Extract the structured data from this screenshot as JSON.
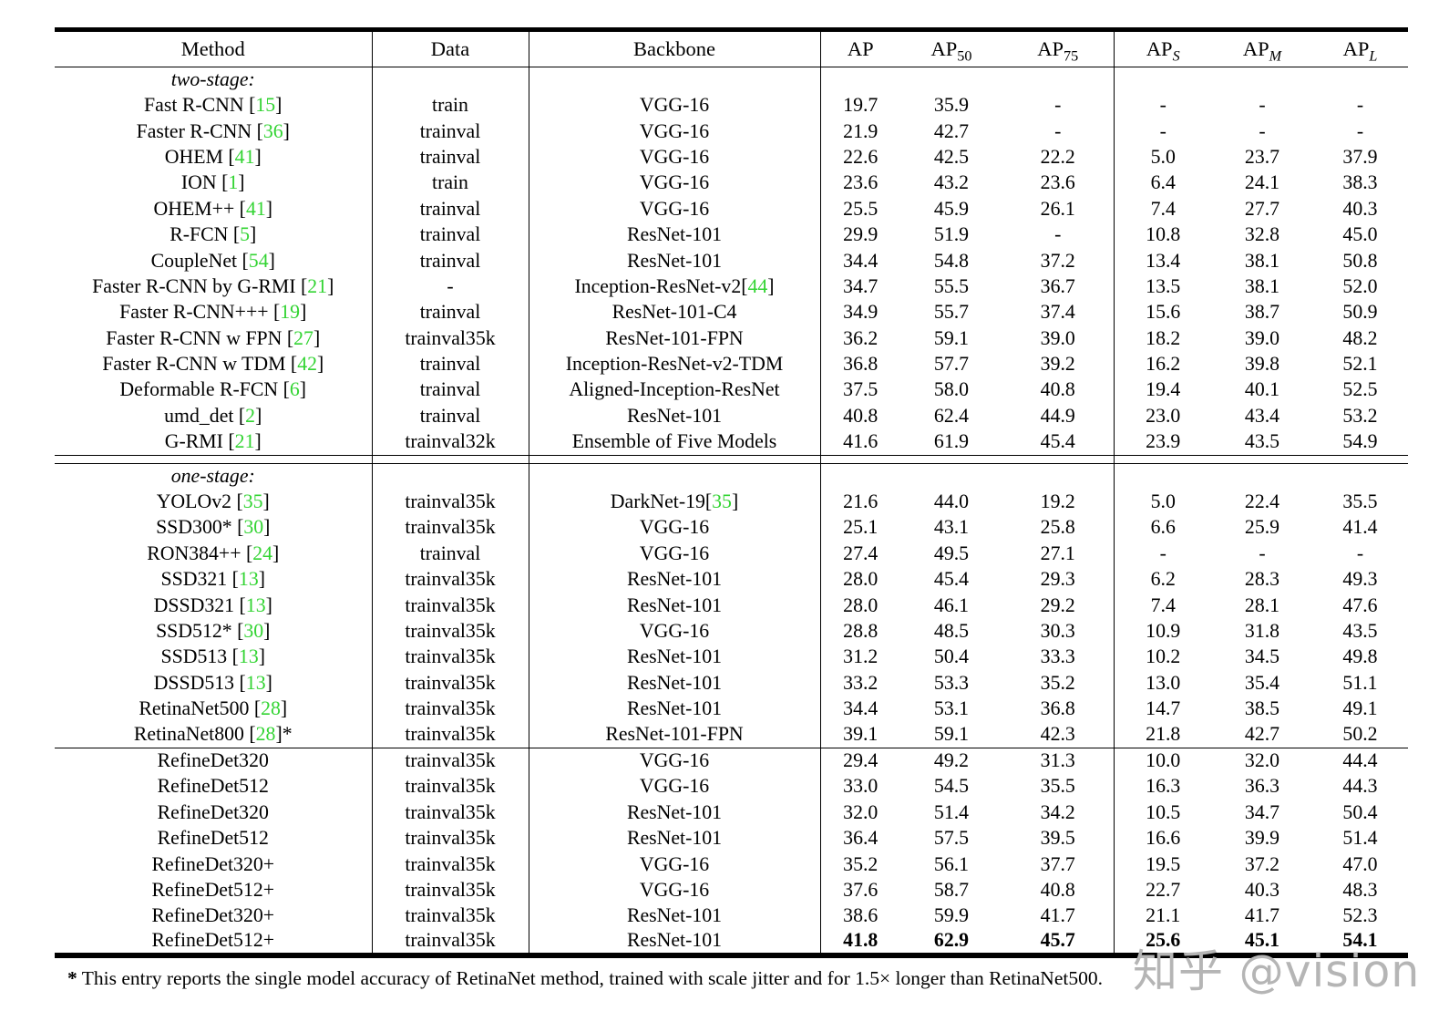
{
  "colors": {
    "cite_green": "#33d433",
    "watermark_gray": "#b5b5b5"
  },
  "watermark": {
    "text": "知乎 @vision"
  },
  "footnote": {
    "star": "*",
    "text": "This entry reports the single model accuracy of RetinaNet method, trained with scale jitter and for 1.5× longer than RetinaNet500."
  },
  "table": {
    "headers": [
      {
        "text": "Method"
      },
      {
        "text": "Data"
      },
      {
        "text": "Backbone"
      },
      {
        "text": "AP"
      },
      {
        "text": "AP",
        "sub": "50",
        "italic_sub": false
      },
      {
        "text": "AP",
        "sub": "75",
        "italic_sub": false
      },
      {
        "text": "AP",
        "sub": "S",
        "italic_sub": true
      },
      {
        "text": "AP",
        "sub": "M",
        "italic_sub": true
      },
      {
        "text": "AP",
        "sub": "L",
        "italic_sub": true
      }
    ],
    "sections": [
      {
        "label": "two-stage:",
        "rows": [
          {
            "method": "Fast R-CNN",
            "cite": "15",
            "suffix": "",
            "data": "train",
            "backbone": "VGG-16",
            "backbone_cite": "",
            "vals": [
              "19.7",
              "35.9",
              "-",
              "-",
              "-",
              "-"
            ],
            "bold": false
          },
          {
            "method": "Faster R-CNN",
            "cite": "36",
            "suffix": "",
            "data": "trainval",
            "backbone": "VGG-16",
            "backbone_cite": "",
            "vals": [
              "21.9",
              "42.7",
              "-",
              "-",
              "-",
              "-"
            ],
            "bold": false
          },
          {
            "method": "OHEM",
            "cite": "41",
            "suffix": "",
            "data": "trainval",
            "backbone": "VGG-16",
            "backbone_cite": "",
            "vals": [
              "22.6",
              "42.5",
              "22.2",
              "5.0",
              "23.7",
              "37.9"
            ],
            "bold": false
          },
          {
            "method": "ION",
            "cite": "1",
            "suffix": "",
            "data": "train",
            "backbone": "VGG-16",
            "backbone_cite": "",
            "vals": [
              "23.6",
              "43.2",
              "23.6",
              "6.4",
              "24.1",
              "38.3"
            ],
            "bold": false
          },
          {
            "method": "OHEM++",
            "cite": "41",
            "suffix": "",
            "data": "trainval",
            "backbone": "VGG-16",
            "backbone_cite": "",
            "vals": [
              "25.5",
              "45.9",
              "26.1",
              "7.4",
              "27.7",
              "40.3"
            ],
            "bold": false
          },
          {
            "method": "R-FCN",
            "cite": "5",
            "suffix": "",
            "data": "trainval",
            "backbone": "ResNet-101",
            "backbone_cite": "",
            "vals": [
              "29.9",
              "51.9",
              "-",
              "10.8",
              "32.8",
              "45.0"
            ],
            "bold": false
          },
          {
            "method": "CoupleNet",
            "cite": "54",
            "suffix": "",
            "data": "trainval",
            "backbone": "ResNet-101",
            "backbone_cite": "",
            "vals": [
              "34.4",
              "54.8",
              "37.2",
              "13.4",
              "38.1",
              "50.8"
            ],
            "bold": false
          },
          {
            "method": "Faster R-CNN by G-RMI",
            "cite": "21",
            "suffix": "",
            "data": "-",
            "backbone": "Inception-ResNet-v2",
            "backbone_cite": "44",
            "vals": [
              "34.7",
              "55.5",
              "36.7",
              "13.5",
              "38.1",
              "52.0"
            ],
            "bold": false
          },
          {
            "method": "Faster R-CNN+++",
            "cite": "19",
            "suffix": "",
            "data": "trainval",
            "backbone": "ResNet-101-C4",
            "backbone_cite": "",
            "vals": [
              "34.9",
              "55.7",
              "37.4",
              "15.6",
              "38.7",
              "50.9"
            ],
            "bold": false
          },
          {
            "method": "Faster R-CNN w FPN",
            "cite": "27",
            "suffix": "",
            "data": "trainval35k",
            "backbone": "ResNet-101-FPN",
            "backbone_cite": "",
            "vals": [
              "36.2",
              "59.1",
              "39.0",
              "18.2",
              "39.0",
              "48.2"
            ],
            "bold": false
          },
          {
            "method": "Faster R-CNN w TDM",
            "cite": "42",
            "suffix": "",
            "data": "trainval",
            "backbone": "Inception-ResNet-v2-TDM",
            "backbone_cite": "",
            "vals": [
              "36.8",
              "57.7",
              "39.2",
              "16.2",
              "39.8",
              "52.1"
            ],
            "bold": false
          },
          {
            "method": "Deformable R-FCN",
            "cite": "6",
            "suffix": "",
            "data": "trainval",
            "backbone": "Aligned-Inception-ResNet",
            "backbone_cite": "",
            "vals": [
              "37.5",
              "58.0",
              "40.8",
              "19.4",
              "40.1",
              "52.5"
            ],
            "bold": false
          },
          {
            "method": "umd_det",
            "cite": "2",
            "suffix": "",
            "data": "trainval",
            "backbone": "ResNet-101",
            "backbone_cite": "",
            "vals": [
              "40.8",
              "62.4",
              "44.9",
              "23.0",
              "43.4",
              "53.2"
            ],
            "bold": false
          },
          {
            "method": "G-RMI",
            "cite": "21",
            "suffix": "",
            "data": "trainval32k",
            "backbone": "Ensemble of Five Models",
            "backbone_cite": "",
            "vals": [
              "41.6",
              "61.9",
              "45.4",
              "23.9",
              "43.5",
              "54.9"
            ],
            "bold": false
          }
        ]
      },
      {
        "label": "one-stage:",
        "rows": [
          {
            "method": "YOLOv2",
            "cite": "35",
            "suffix": "",
            "data": "trainval35k",
            "backbone": "DarkNet-19",
            "backbone_cite": "35",
            "vals": [
              "21.6",
              "44.0",
              "19.2",
              "5.0",
              "22.4",
              "35.5"
            ],
            "bold": false
          },
          {
            "method": "SSD300*",
            "cite": "30",
            "suffix": "",
            "data": "trainval35k",
            "backbone": "VGG-16",
            "backbone_cite": "",
            "vals": [
              "25.1",
              "43.1",
              "25.8",
              "6.6",
              "25.9",
              "41.4"
            ],
            "bold": false
          },
          {
            "method": "RON384++",
            "cite": "24",
            "suffix": "",
            "data": "trainval",
            "backbone": "VGG-16",
            "backbone_cite": "",
            "vals": [
              "27.4",
              "49.5",
              "27.1",
              "-",
              "-",
              "-"
            ],
            "bold": false
          },
          {
            "method": "SSD321",
            "cite": "13",
            "suffix": "",
            "data": "trainval35k",
            "backbone": "ResNet-101",
            "backbone_cite": "",
            "vals": [
              "28.0",
              "45.4",
              "29.3",
              "6.2",
              "28.3",
              "49.3"
            ],
            "bold": false
          },
          {
            "method": "DSSD321",
            "cite": "13",
            "suffix": "",
            "data": "trainval35k",
            "backbone": "ResNet-101",
            "backbone_cite": "",
            "vals": [
              "28.0",
              "46.1",
              "29.2",
              "7.4",
              "28.1",
              "47.6"
            ],
            "bold": false
          },
          {
            "method": "SSD512*",
            "cite": "30",
            "suffix": "",
            "data": "trainval35k",
            "backbone": "VGG-16",
            "backbone_cite": "",
            "vals": [
              "28.8",
              "48.5",
              "30.3",
              "10.9",
              "31.8",
              "43.5"
            ],
            "bold": false
          },
          {
            "method": "SSD513",
            "cite": "13",
            "suffix": "",
            "data": "trainval35k",
            "backbone": "ResNet-101",
            "backbone_cite": "",
            "vals": [
              "31.2",
              "50.4",
              "33.3",
              "10.2",
              "34.5",
              "49.8"
            ],
            "bold": false
          },
          {
            "method": "DSSD513",
            "cite": "13",
            "suffix": "",
            "data": "trainval35k",
            "backbone": "ResNet-101",
            "backbone_cite": "",
            "vals": [
              "33.2",
              "53.3",
              "35.2",
              "13.0",
              "35.4",
              "51.1"
            ],
            "bold": false
          },
          {
            "method": "RetinaNet500",
            "cite": "28",
            "suffix": "",
            "data": "trainval35k",
            "backbone": "ResNet-101",
            "backbone_cite": "",
            "vals": [
              "34.4",
              "53.1",
              "36.8",
              "14.7",
              "38.5",
              "49.1"
            ],
            "bold": false
          },
          {
            "method": "RetinaNet800",
            "cite": "28",
            "suffix": "*",
            "data": "trainval35k",
            "backbone": "ResNet-101-FPN",
            "backbone_cite": "",
            "vals": [
              "39.1",
              "59.1",
              "42.3",
              "21.8",
              "42.7",
              "50.2"
            ],
            "bold": false
          }
        ]
      },
      {
        "label": null,
        "rows": [
          {
            "method": "RefineDet320",
            "cite": "",
            "suffix": "",
            "data": "trainval35k",
            "backbone": "VGG-16",
            "backbone_cite": "",
            "vals": [
              "29.4",
              "49.2",
              "31.3",
              "10.0",
              "32.0",
              "44.4"
            ],
            "bold": false
          },
          {
            "method": "RefineDet512",
            "cite": "",
            "suffix": "",
            "data": "trainval35k",
            "backbone": "VGG-16",
            "backbone_cite": "",
            "vals": [
              "33.0",
              "54.5",
              "35.5",
              "16.3",
              "36.3",
              "44.3"
            ],
            "bold": false
          },
          {
            "method": "RefineDet320",
            "cite": "",
            "suffix": "",
            "data": "trainval35k",
            "backbone": "ResNet-101",
            "backbone_cite": "",
            "vals": [
              "32.0",
              "51.4",
              "34.2",
              "10.5",
              "34.7",
              "50.4"
            ],
            "bold": false
          },
          {
            "method": "RefineDet512",
            "cite": "",
            "suffix": "",
            "data": "trainval35k",
            "backbone": "ResNet-101",
            "backbone_cite": "",
            "vals": [
              "36.4",
              "57.5",
              "39.5",
              "16.6",
              "39.9",
              "51.4"
            ],
            "bold": false
          },
          {
            "method": "RefineDet320+",
            "cite": "",
            "suffix": "",
            "data": "trainval35k",
            "backbone": "VGG-16",
            "backbone_cite": "",
            "vals": [
              "35.2",
              "56.1",
              "37.7",
              "19.5",
              "37.2",
              "47.0"
            ],
            "bold": false
          },
          {
            "method": "RefineDet512+",
            "cite": "",
            "suffix": "",
            "data": "trainval35k",
            "backbone": "VGG-16",
            "backbone_cite": "",
            "vals": [
              "37.6",
              "58.7",
              "40.8",
              "22.7",
              "40.3",
              "48.3"
            ],
            "bold": false
          },
          {
            "method": "RefineDet320+",
            "cite": "",
            "suffix": "",
            "data": "trainval35k",
            "backbone": "ResNet-101",
            "backbone_cite": "",
            "vals": [
              "38.6",
              "59.9",
              "41.7",
              "21.1",
              "41.7",
              "52.3"
            ],
            "bold": false
          },
          {
            "method": "RefineDet512+",
            "cite": "",
            "suffix": "",
            "data": "trainval35k",
            "backbone": "ResNet-101",
            "backbone_cite": "",
            "vals": [
              "41.8",
              "62.9",
              "45.7",
              "25.6",
              "45.1",
              "54.1"
            ],
            "bold": true
          }
        ]
      }
    ]
  }
}
